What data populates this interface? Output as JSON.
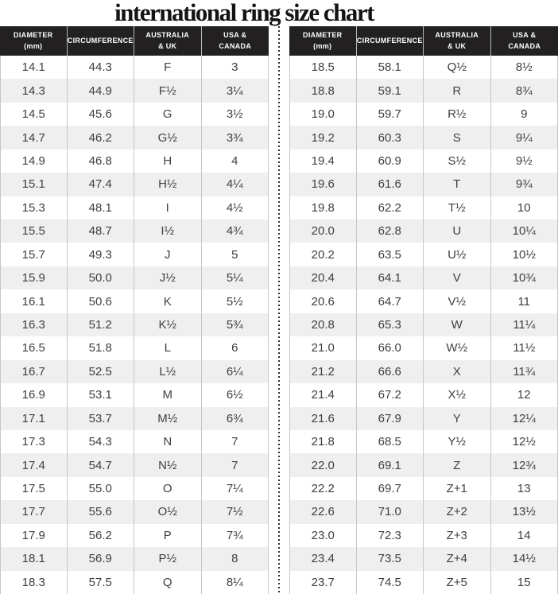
{
  "title": "international ring size chart",
  "colors": {
    "header_bg": "#222021",
    "header_text": "#ffffff",
    "row_alt_bg": "#f0eff0",
    "grid_line": "#c6c6c6",
    "body_text": "#3f3f3f",
    "title_text": "#141414",
    "divider_dot": "#2b2b2b"
  },
  "chart_data": {
    "type": "table",
    "title": "international ring size chart",
    "columns": [
      "DIAMETER (mm)",
      "CIRCUMFERENCE",
      "AUSTRALIA & UK",
      "USA & CANADA"
    ],
    "header_lines": [
      [
        "DIAMETER",
        "(mm)"
      ],
      [
        "CIRCUMFERENCE"
      ],
      [
        "AUSTRALIA",
        "& UK"
      ],
      [
        "USA &",
        "CANADA"
      ]
    ],
    "layout": {
      "panels": 2,
      "divider": "vertical-dotted-line",
      "row_striping": "even-rows-gray"
    },
    "tables": [
      {
        "name": "left-panel",
        "rows": [
          [
            "14.1",
            "44.3",
            "F",
            "3"
          ],
          [
            "14.3",
            "44.9",
            "F½",
            "3¼"
          ],
          [
            "14.5",
            "45.6",
            "G",
            "3½"
          ],
          [
            "14.7",
            "46.2",
            "G½",
            "3¾"
          ],
          [
            "14.9",
            "46.8",
            "H",
            "4"
          ],
          [
            "15.1",
            "47.4",
            "H½",
            "4¼"
          ],
          [
            "15.3",
            "48.1",
            "I",
            "4½"
          ],
          [
            "15.5",
            "48.7",
            "I½",
            "4¾"
          ],
          [
            "15.7",
            "49.3",
            "J",
            "5"
          ],
          [
            "15.9",
            "50.0",
            "J½",
            "5¼"
          ],
          [
            "16.1",
            "50.6",
            "K",
            "5½"
          ],
          [
            "16.3",
            "51.2",
            "K½",
            "5¾"
          ],
          [
            "16.5",
            "51.8",
            "L",
            "6"
          ],
          [
            "16.7",
            "52.5",
            "L½",
            "6¼"
          ],
          [
            "16.9",
            "53.1",
            "M",
            "6½"
          ],
          [
            "17.1",
            "53.7",
            "M½",
            "6¾"
          ],
          [
            "17.3",
            "54.3",
            "N",
            "7"
          ],
          [
            "17.4",
            "54.7",
            "N½",
            "7"
          ],
          [
            "17.5",
            "55.0",
            "O",
            "7¼"
          ],
          [
            "17.7",
            "55.6",
            "O½",
            "7½"
          ],
          [
            "17.9",
            "56.2",
            "P",
            "7¾"
          ],
          [
            "18.1",
            "56.9",
            "P½",
            "8"
          ],
          [
            "18.3",
            "57.5",
            "Q",
            "8¼"
          ]
        ]
      },
      {
        "name": "right-panel",
        "rows": [
          [
            "18.5",
            "58.1",
            "Q½",
            "8½"
          ],
          [
            "18.8",
            "59.1",
            "R",
            "8¾"
          ],
          [
            "19.0",
            "59.7",
            "R½",
            "9"
          ],
          [
            "19.2",
            "60.3",
            "S",
            "9¼"
          ],
          [
            "19.4",
            "60.9",
            "S½",
            "9½"
          ],
          [
            "19.6",
            "61.6",
            "T",
            "9¾"
          ],
          [
            "19.8",
            "62.2",
            "T½",
            "10"
          ],
          [
            "20.0",
            "62.8",
            "U",
            "10¼"
          ],
          [
            "20.2",
            "63.5",
            "U½",
            "10½"
          ],
          [
            "20.4",
            "64.1",
            "V",
            "10¾"
          ],
          [
            "20.6",
            "64.7",
            "V½",
            "11"
          ],
          [
            "20.8",
            "65.3",
            "W",
            "11¼"
          ],
          [
            "21.0",
            "66.0",
            "W½",
            "11½"
          ],
          [
            "21.2",
            "66.6",
            "X",
            "11¾"
          ],
          [
            "21.4",
            "67.2",
            "X½",
            "12"
          ],
          [
            "21.6",
            "67.9",
            "Y",
            "12¼"
          ],
          [
            "21.8",
            "68.5",
            "Y½",
            "12½"
          ],
          [
            "22.0",
            "69.1",
            "Z",
            "12¾"
          ],
          [
            "22.2",
            "69.7",
            "Z+1",
            "13"
          ],
          [
            "22.6",
            "71.0",
            "Z+2",
            "13½"
          ],
          [
            "23.0",
            "72.3",
            "Z+3",
            "14"
          ],
          [
            "23.4",
            "73.5",
            "Z+4",
            "14½"
          ],
          [
            "23.7",
            "74.5",
            "Z+5",
            "15"
          ]
        ]
      }
    ]
  }
}
